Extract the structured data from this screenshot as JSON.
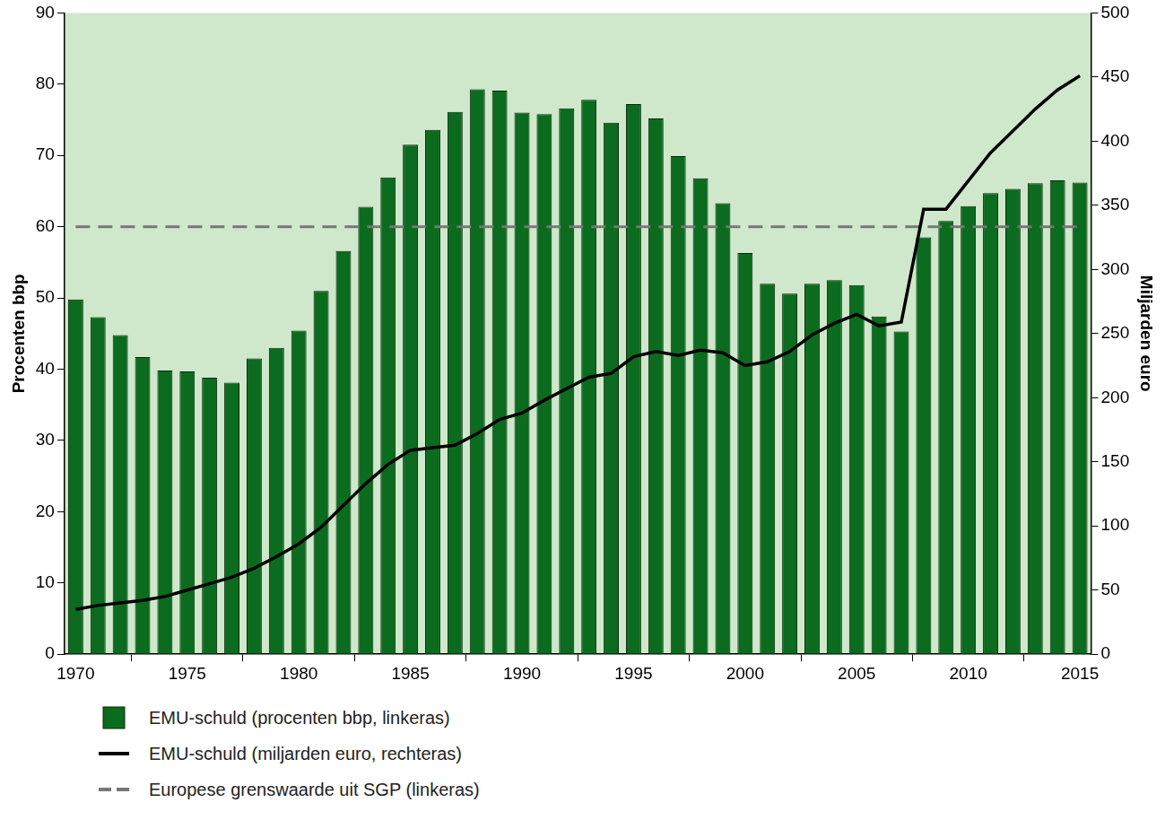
{
  "chart_data": {
    "type": "bar",
    "x": [
      1970,
      1971,
      1972,
      1973,
      1974,
      1975,
      1976,
      1977,
      1978,
      1979,
      1980,
      1981,
      1982,
      1983,
      1984,
      1985,
      1986,
      1987,
      1988,
      1989,
      1990,
      1991,
      1992,
      1993,
      1994,
      1995,
      1996,
      1997,
      1998,
      1999,
      2000,
      2001,
      2002,
      2003,
      2004,
      2005,
      2006,
      2007,
      2008,
      2009,
      2010,
      2011,
      2012,
      2013,
      2014,
      2015
    ],
    "series": [
      {
        "name": "EMU-schuld (procenten bbp, linkeras)",
        "type": "bar",
        "color": "#0b6b1f",
        "values": [
          49.8,
          47.3,
          44.8,
          41.7,
          39.8,
          39.7,
          38.8,
          38.1,
          41.5,
          43.0,
          45.4,
          51.0,
          56.6,
          62.8,
          66.9,
          71.5,
          73.6,
          76.1,
          79.3,
          79.1,
          76.0,
          75.8,
          76.6,
          77.8,
          74.6,
          77.2,
          75.2,
          69.9,
          66.8,
          63.3,
          56.3,
          52.0,
          50.6,
          52.0,
          52.5,
          51.8,
          47.4,
          45.3,
          58.5,
          60.8,
          62.9,
          64.7,
          65.3,
          66.1,
          66.5,
          66.2
        ]
      },
      {
        "name": "EMU-schuld (miljarden euro, rechteras)",
        "type": "line",
        "axis": "y2",
        "color": "#000000",
        "line_style": "solid",
        "values": [
          35,
          38,
          40,
          42,
          45,
          50,
          55,
          60,
          67,
          76,
          86,
          99,
          116,
          133,
          148,
          159,
          161,
          163,
          172,
          183,
          188,
          198,
          207,
          216,
          219,
          232,
          236,
          233,
          237,
          235,
          225,
          228,
          236,
          249,
          258,
          265,
          256,
          259,
          347,
          347,
          369,
          391,
          408,
          425,
          440,
          451
        ]
      },
      {
        "name": "Europese grenswaarde uit SGP (linkeras)",
        "type": "line",
        "color": "#777777",
        "line_style": "dashed",
        "values": [
          60,
          60,
          60,
          60,
          60,
          60,
          60,
          60,
          60,
          60,
          60,
          60,
          60,
          60,
          60,
          60,
          60,
          60,
          60,
          60,
          60,
          60,
          60,
          60,
          60,
          60,
          60,
          60,
          60,
          60,
          60,
          60,
          60,
          60,
          60,
          60,
          60,
          60,
          60,
          60,
          60,
          60,
          60,
          60,
          60,
          60
        ]
      }
    ],
    "y_label": "Procenten bbp",
    "y2_label": "Miljarden euro",
    "xlim": [
      1969.5,
      2015.5
    ],
    "xticks": [
      1970,
      1975,
      1980,
      1985,
      1990,
      1995,
      2000,
      2005,
      2010,
      2015
    ],
    "ylim": [
      0,
      90
    ],
    "yticks": [
      0,
      10,
      20,
      30,
      40,
      50,
      60,
      70,
      80,
      90
    ],
    "y2lim": [
      0,
      500
    ],
    "y2ticks": [
      0,
      50,
      100,
      150,
      200,
      250,
      300,
      350,
      400,
      450,
      500
    ],
    "grid": false,
    "legend": "bottom-left"
  }
}
